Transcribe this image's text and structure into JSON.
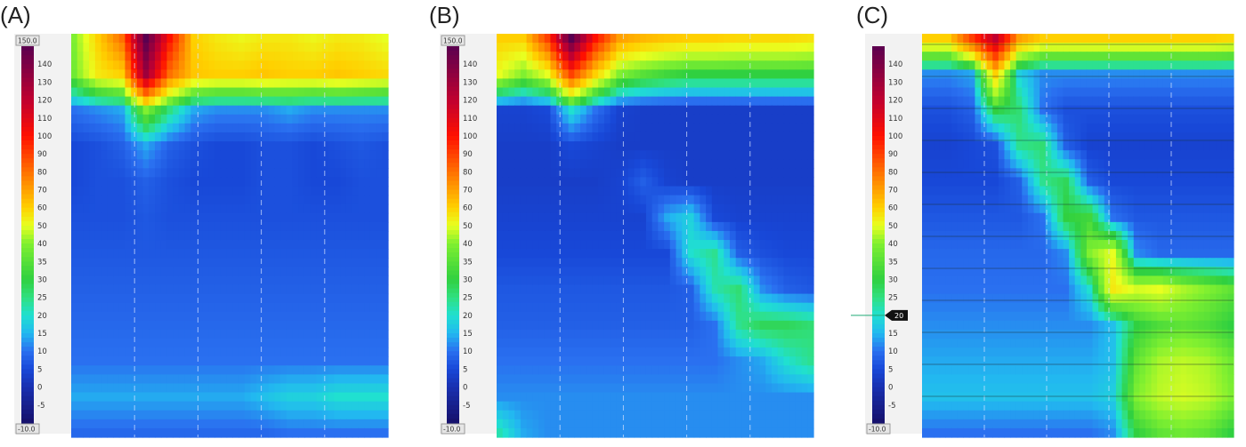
{
  "figure": {
    "panels": [
      {
        "label": "(A)"
      },
      {
        "label": "(B)"
      },
      {
        "label": "(C)"
      }
    ]
  },
  "chart_data": [
    {
      "type": "heatmap",
      "panel": "(A)",
      "colorbar": {
        "max_box": "150.0",
        "min_box": "-10.0",
        "ticks": [
          "140",
          "130",
          "120",
          "110",
          "100",
          "90",
          "80",
          "70",
          "60",
          "50",
          "40",
          "35",
          "30",
          "25",
          "20",
          "15",
          "10",
          "5",
          "0",
          "-5"
        ],
        "colors": [
          "#2a0a45",
          "#6a0050",
          "#c00030",
          "#ff0000",
          "#ff7000",
          "#ffd000",
          "#ffff00",
          "#90ff30",
          "#20d040",
          "#20e0c0",
          "#10a0ff",
          "#1060e8",
          "#1438c8",
          "#16209a",
          "#141060"
        ]
      },
      "description_ranges": "high pressure band near top (upper sphincter region), low pressure body",
      "rows": 12,
      "cols": 14,
      "values": [
        [
          40,
          60,
          80,
          150,
          100,
          60,
          55,
          52,
          55,
          55,
          52,
          55,
          54,
          50
        ],
        [
          38,
          55,
          60,
          130,
          80,
          62,
          60,
          60,
          62,
          60,
          60,
          62,
          60,
          58
        ],
        [
          10,
          12,
          14,
          40,
          25,
          14,
          12,
          12,
          12,
          14,
          12,
          12,
          12,
          12
        ],
        [
          5,
          6,
          8,
          14,
          8,
          6,
          5,
          5,
          6,
          6,
          5,
          6,
          7,
          6
        ],
        [
          5,
          6,
          6,
          8,
          6,
          5,
          5,
          5,
          6,
          6,
          5,
          5,
          6,
          6
        ],
        [
          6,
          6,
          6,
          7,
          6,
          6,
          6,
          6,
          6,
          6,
          6,
          6,
          6,
          6
        ],
        [
          7,
          7,
          7,
          7,
          7,
          7,
          7,
          7,
          7,
          7,
          7,
          7,
          7,
          7
        ],
        [
          8,
          8,
          8,
          8,
          8,
          8,
          8,
          8,
          8,
          8,
          8,
          8,
          8,
          8
        ],
        [
          9,
          9,
          9,
          9,
          9,
          9,
          9,
          9,
          9,
          9,
          9,
          9,
          9,
          9
        ],
        [
          10,
          10,
          10,
          10,
          10,
          10,
          10,
          10,
          10,
          10,
          10,
          10,
          10,
          10
        ],
        [
          14,
          14,
          14,
          14,
          14,
          14,
          14,
          14,
          16,
          18,
          18,
          20,
          20,
          20
        ],
        [
          9,
          9,
          9,
          9,
          9,
          9,
          9,
          9,
          9,
          10,
          10,
          10,
          10,
          10
        ]
      ]
    },
    {
      "type": "heatmap",
      "panel": "(B)",
      "colorbar": {
        "max_box": "150.0",
        "min_box": "-10.0",
        "ticks": [
          "140",
          "130",
          "120",
          "110",
          "100",
          "90",
          "80",
          "70",
          "60",
          "50",
          "40",
          "35",
          "30",
          "25",
          "20",
          "15",
          "10",
          "5",
          "0",
          "-5"
        ]
      },
      "rows": 12,
      "cols": 14,
      "values": [
        [
          60,
          60,
          90,
          150,
          100,
          70,
          65,
          62,
          60,
          60,
          58,
          58,
          58,
          56
        ],
        [
          50,
          40,
          50,
          90,
          60,
          40,
          35,
          32,
          30,
          30,
          30,
          30,
          30,
          30
        ],
        [
          4,
          4,
          5,
          20,
          10,
          4,
          3,
          3,
          3,
          3,
          3,
          3,
          3,
          3
        ],
        [
          3,
          3,
          3,
          5,
          4,
          3,
          3,
          3,
          3,
          3,
          3,
          3,
          3,
          3
        ],
        [
          3,
          3,
          3,
          3,
          3,
          4,
          8,
          4,
          3,
          3,
          3,
          3,
          3,
          3
        ],
        [
          4,
          4,
          4,
          4,
          4,
          4,
          4,
          14,
          18,
          5,
          4,
          4,
          4,
          4
        ],
        [
          5,
          5,
          5,
          5,
          5,
          5,
          5,
          5,
          20,
          24,
          8,
          6,
          5,
          5
        ],
        [
          7,
          7,
          7,
          7,
          7,
          7,
          7,
          7,
          8,
          22,
          26,
          12,
          8,
          7
        ],
        [
          8,
          8,
          8,
          8,
          8,
          8,
          8,
          8,
          8,
          10,
          24,
          28,
          28,
          26
        ],
        [
          10,
          10,
          10,
          10,
          10,
          10,
          10,
          10,
          10,
          10,
          12,
          14,
          20,
          24
        ],
        [
          12,
          12,
          12,
          12,
          12,
          12,
          12,
          12,
          12,
          12,
          12,
          12,
          12,
          12
        ],
        [
          22,
          14,
          12,
          12,
          12,
          12,
          12,
          12,
          12,
          12,
          12,
          12,
          12,
          12
        ]
      ]
    },
    {
      "type": "heatmap",
      "panel": "(C)",
      "colorbar": {
        "min_box": "-10.0",
        "ticks": [
          "140",
          "130",
          "120",
          "110",
          "100",
          "90",
          "80",
          "70",
          "60",
          "50",
          "40",
          "35",
          "30",
          "25",
          "20",
          "15",
          "10",
          "5",
          "0",
          "-5"
        ],
        "marker": "20"
      },
      "rows": 12,
      "cols": 14,
      "values": [
        [
          60,
          60,
          90,
          120,
          70,
          60,
          60,
          60,
          60,
          60,
          60,
          60,
          60,
          58
        ],
        [
          12,
          12,
          14,
          60,
          18,
          12,
          12,
          12,
          12,
          12,
          12,
          12,
          12,
          12
        ],
        [
          6,
          6,
          8,
          30,
          26,
          10,
          6,
          6,
          6,
          6,
          6,
          6,
          6,
          6
        ],
        [
          4,
          4,
          5,
          6,
          24,
          26,
          8,
          4,
          4,
          4,
          4,
          4,
          4,
          4
        ],
        [
          5,
          5,
          5,
          5,
          8,
          24,
          28,
          8,
          5,
          5,
          5,
          5,
          5,
          5
        ],
        [
          7,
          7,
          7,
          7,
          7,
          10,
          30,
          32,
          10,
          7,
          7,
          7,
          7,
          7
        ],
        [
          9,
          9,
          9,
          9,
          9,
          9,
          12,
          40,
          50,
          12,
          9,
          9,
          9,
          9
        ],
        [
          10,
          10,
          10,
          10,
          10,
          10,
          10,
          20,
          55,
          48,
          50,
          44,
          40,
          36
        ],
        [
          12,
          12,
          12,
          12,
          12,
          12,
          12,
          12,
          16,
          30,
          34,
          36,
          34,
          30
        ],
        [
          14,
          14,
          14,
          14,
          14,
          14,
          14,
          14,
          16,
          36,
          44,
          46,
          44,
          38
        ],
        [
          16,
          16,
          16,
          16,
          16,
          16,
          16,
          16,
          18,
          40,
          46,
          48,
          46,
          40
        ],
        [
          10,
          10,
          10,
          10,
          10,
          10,
          10,
          10,
          12,
          30,
          36,
          38,
          36,
          30
        ]
      ]
    }
  ]
}
